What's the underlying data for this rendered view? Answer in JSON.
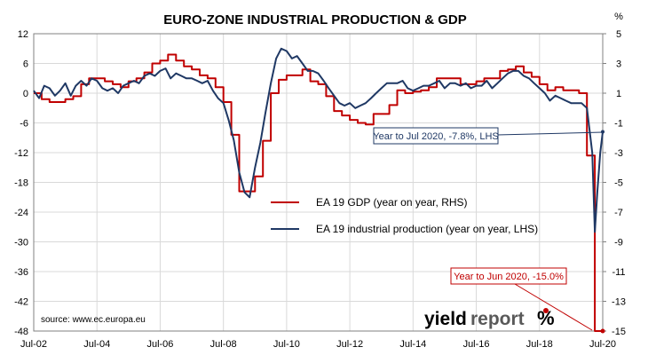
{
  "chart_data": {
    "type": "line",
    "title": "EURO-ZONE INDUSTRIAL PRODUCTION & GDP",
    "right_axis_unit": "%",
    "source": "source: www.ec.europa.eu",
    "brand": "yieldreport %",
    "x_tick_labels": [
      "Jul-02",
      "Jul-04",
      "Jul-06",
      "Jul-08",
      "Jul-10",
      "Jul-12",
      "Jul-14",
      "Jul-16",
      "Jul-18",
      "Jul-20"
    ],
    "xlim": [
      2002.5,
      2020.5
    ],
    "y_left": {
      "ylim": [
        -48,
        12
      ],
      "ticks": [
        12,
        6,
        0,
        -6,
        -12,
        -18,
        -24,
        -30,
        -36,
        -42,
        -48
      ]
    },
    "y_right": {
      "ylim": [
        -15,
        5
      ],
      "ticks": [
        5,
        3,
        1,
        -1,
        -3,
        -5,
        -7,
        -9,
        -11,
        -13,
        -15
      ]
    },
    "grid": true,
    "legend_position": "center",
    "colors": {
      "gdp": "#c00000",
      "ip": "#1f3864"
    },
    "series": [
      {
        "key": "gdp",
        "name": "EA 19 GDP (year on year, RHS)",
        "axis": "right",
        "step": true,
        "x": [
          2002.5,
          2002.75,
          2003.0,
          2003.25,
          2003.5,
          2003.75,
          2004.0,
          2004.25,
          2004.5,
          2004.75,
          2005.0,
          2005.25,
          2005.5,
          2005.75,
          2006.0,
          2006.25,
          2006.5,
          2006.75,
          2007.0,
          2007.25,
          2007.5,
          2007.75,
          2008.0,
          2008.25,
          2008.5,
          2008.75,
          2009.0,
          2009.25,
          2009.5,
          2009.75,
          2010.0,
          2010.25,
          2010.5,
          2010.75,
          2011.0,
          2011.25,
          2011.5,
          2011.75,
          2012.0,
          2012.25,
          2012.5,
          2012.75,
          2013.0,
          2013.25,
          2013.5,
          2013.75,
          2014.0,
          2014.25,
          2014.5,
          2014.75,
          2015.0,
          2015.25,
          2015.5,
          2015.75,
          2016.0,
          2016.25,
          2016.5,
          2016.75,
          2017.0,
          2017.25,
          2017.5,
          2017.75,
          2018.0,
          2018.25,
          2018.5,
          2018.75,
          2019.0,
          2019.25,
          2019.5,
          2019.75,
          2020.0,
          2020.25,
          2020.5
        ],
        "values": [
          1.0,
          0.6,
          0.4,
          0.4,
          0.6,
          0.8,
          1.6,
          2.0,
          2.0,
          1.8,
          1.6,
          1.4,
          1.8,
          2.0,
          2.4,
          3.0,
          3.2,
          3.6,
          3.2,
          2.8,
          2.6,
          2.2,
          2.0,
          1.4,
          0.4,
          -1.8,
          -5.6,
          -5.6,
          -4.6,
          -2.2,
          1.0,
          1.9,
          2.2,
          2.2,
          2.6,
          1.8,
          1.6,
          0.8,
          -0.2,
          -0.5,
          -0.8,
          -1.0,
          -1.1,
          -0.4,
          -0.4,
          0.2,
          1.2,
          1.0,
          1.1,
          1.2,
          1.4,
          2.0,
          2.0,
          2.0,
          1.6,
          1.6,
          1.8,
          2.0,
          2.0,
          2.5,
          2.6,
          2.8,
          2.4,
          2.1,
          1.6,
          1.2,
          1.4,
          1.2,
          1.2,
          1.0,
          -3.2,
          -15.0,
          -15.0
        ]
      },
      {
        "key": "ip",
        "name": "EA 19 industrial production (year on year, LHS)",
        "axis": "left",
        "step": false,
        "x": [
          2002.5,
          2002.67,
          2002.83,
          2003.0,
          2003.17,
          2003.33,
          2003.5,
          2003.67,
          2003.83,
          2004.0,
          2004.17,
          2004.33,
          2004.5,
          2004.67,
          2004.83,
          2005.0,
          2005.17,
          2005.33,
          2005.5,
          2005.67,
          2005.83,
          2006.0,
          2006.17,
          2006.33,
          2006.5,
          2006.67,
          2006.83,
          2007.0,
          2007.17,
          2007.33,
          2007.5,
          2007.67,
          2007.83,
          2008.0,
          2008.17,
          2008.33,
          2008.5,
          2008.67,
          2008.83,
          2009.0,
          2009.17,
          2009.33,
          2009.5,
          2009.67,
          2009.83,
          2010.0,
          2010.17,
          2010.33,
          2010.5,
          2010.67,
          2010.83,
          2011.0,
          2011.17,
          2011.33,
          2011.5,
          2011.67,
          2011.83,
          2012.0,
          2012.17,
          2012.33,
          2012.5,
          2012.67,
          2012.83,
          2013.0,
          2013.17,
          2013.33,
          2013.5,
          2013.67,
          2013.83,
          2014.0,
          2014.17,
          2014.33,
          2014.5,
          2014.67,
          2014.83,
          2015.0,
          2015.17,
          2015.33,
          2015.5,
          2015.67,
          2015.83,
          2016.0,
          2016.17,
          2016.33,
          2016.5,
          2016.67,
          2016.83,
          2017.0,
          2017.17,
          2017.33,
          2017.5,
          2017.67,
          2017.83,
          2018.0,
          2018.17,
          2018.33,
          2018.5,
          2018.67,
          2018.83,
          2019.0,
          2019.17,
          2019.33,
          2019.5,
          2019.67,
          2019.83,
          2020.0,
          2020.17,
          2020.25,
          2020.33,
          2020.42,
          2020.5
        ],
        "values": [
          0.5,
          -1.0,
          1.5,
          1.0,
          -0.5,
          0.5,
          2.0,
          -0.5,
          1.5,
          2.5,
          1.5,
          3.0,
          2.5,
          1.0,
          0.5,
          1.0,
          0.0,
          1.5,
          2.0,
          2.5,
          2.0,
          3.5,
          4.0,
          3.5,
          4.5,
          5.0,
          3.0,
          4.0,
          3.5,
          3.0,
          3.0,
          2.5,
          2.0,
          2.5,
          0.5,
          -1.0,
          -2.0,
          -5.5,
          -9.5,
          -16.0,
          -20.0,
          -21.0,
          -15.0,
          -10.0,
          -4.0,
          2.0,
          7.0,
          9.0,
          8.5,
          7.0,
          7.5,
          6.0,
          4.5,
          4.5,
          4.0,
          2.5,
          1.0,
          -0.5,
          -2.0,
          -2.5,
          -2.0,
          -3.0,
          -2.5,
          -2.0,
          -1.0,
          0.0,
          1.0,
          2.0,
          2.0,
          2.0,
          2.5,
          1.0,
          0.5,
          1.0,
          1.5,
          1.5,
          2.0,
          2.5,
          1.0,
          2.0,
          2.0,
          1.5,
          2.0,
          1.0,
          1.5,
          1.5,
          2.5,
          1.0,
          2.0,
          3.0,
          4.0,
          4.5,
          4.5,
          3.5,
          3.0,
          2.0,
          1.0,
          0.0,
          -1.5,
          -0.5,
          -1.0,
          -1.5,
          -2.0,
          -2.0,
          -2.0,
          -3.0,
          -12.0,
          -28.0,
          -20.0,
          -12.0,
          -7.8
        ]
      }
    ],
    "annotations": {
      "ip_label": "Year to Jul 2020, -7.8%, LHS",
      "gdp_label": "Year to Jun 2020, -15.0%"
    }
  }
}
